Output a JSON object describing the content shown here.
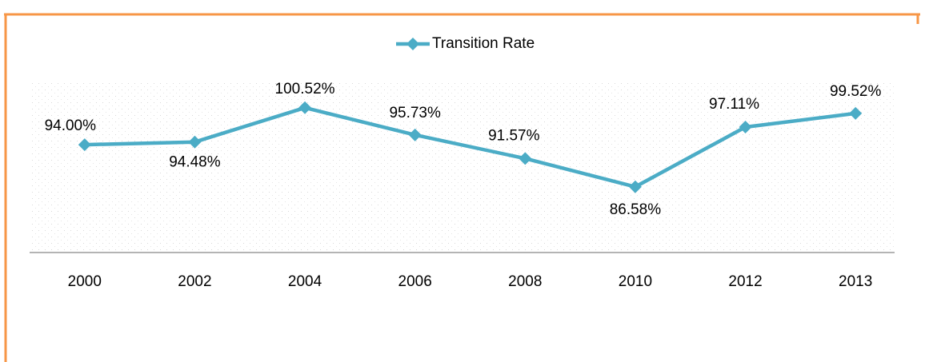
{
  "chart_data": {
    "type": "line",
    "categories": [
      "2000",
      "2002",
      "2004",
      "2006",
      "2008",
      "2010",
      "2012",
      "2013"
    ],
    "series": [
      {
        "name": "Transition Rate",
        "color": "#4bacc6",
        "values": [
          94.0,
          94.48,
          100.52,
          95.73,
          91.57,
          86.58,
          97.11,
          99.52
        ],
        "value_labels": [
          "94.00%",
          "94.48%",
          "100.52%",
          "95.73%",
          "91.57%",
          "86.58%",
          "97.11%",
          "99.52%"
        ]
      }
    ],
    "ylim": [
      75,
      105
    ],
    "legend": "top"
  }
}
